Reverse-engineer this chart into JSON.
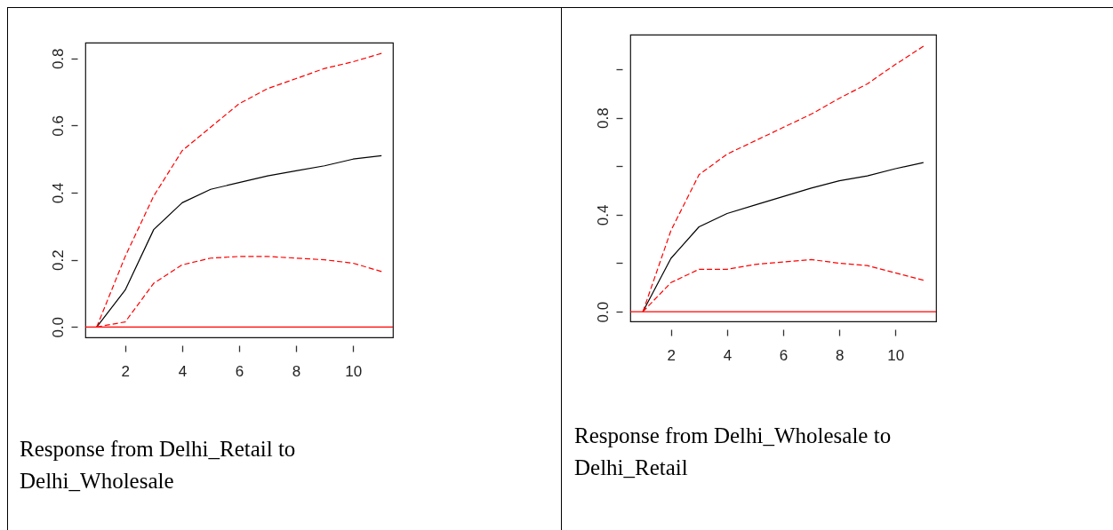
{
  "chart_data": [
    {
      "type": "line",
      "x": [
        1,
        2,
        3,
        4,
        5,
        6,
        7,
        8,
        9,
        10,
        11
      ],
      "xlim": [
        0.6,
        11.4
      ],
      "xticks": [
        2,
        4,
        6,
        8,
        10
      ],
      "ylim": [
        -0.031,
        0.847
      ],
      "yticks": [
        {
          "value": 0.0,
          "label": "0.0"
        },
        {
          "value": 0.2,
          "label": "0.2"
        },
        {
          "value": 0.4,
          "label": "0.4"
        },
        {
          "value": 0.6,
          "label": "0.6"
        },
        {
          "value": 0.8,
          "label": "0.8"
        }
      ],
      "grid": false,
      "series": [
        {
          "color": "#000000",
          "line_style": "solid",
          "values": [
            0,
            0.11,
            0.29,
            0.37,
            0.41,
            0.43,
            0.45,
            0.465,
            0.48,
            0.5,
            0.51
          ]
        },
        {
          "color": "#ff0000",
          "line_style": "dashed",
          "values": [
            0,
            0.21,
            0.39,
            0.525,
            0.595,
            0.665,
            0.71,
            0.74,
            0.77,
            0.79,
            0.815
          ]
        },
        {
          "color": "#ff0000",
          "line_style": "dashed",
          "values": [
            0,
            0.015,
            0.13,
            0.185,
            0.205,
            0.21,
            0.21,
            0.205,
            0.2,
            0.19,
            0.165
          ]
        }
      ],
      "ref_lines": [
        {
          "axis": "y",
          "value": 0,
          "color": "#ff0000"
        }
      ],
      "annotations": [
        "Response from Delhi_Retail to Delhi_Wholesale"
      ]
    },
    {
      "type": "line",
      "x": [
        1,
        2,
        3,
        4,
        5,
        6,
        7,
        8,
        9,
        10,
        11
      ],
      "xlim": [
        0.55,
        11.45
      ],
      "xticks": [
        2,
        4,
        6,
        8,
        10
      ],
      "ylim": [
        -0.04,
        1.143
      ],
      "yticks": [
        {
          "value": 0.0,
          "label": "0.0"
        },
        {
          "value": 0.2,
          "label": null
        },
        {
          "value": 0.4,
          "label": "0.4"
        },
        {
          "value": 0.6,
          "label": null
        },
        {
          "value": 0.8,
          "label": "0.8"
        },
        {
          "value": 1.0,
          "label": null
        }
      ],
      "grid": false,
      "series": [
        {
          "color": "#000000",
          "line_style": "solid",
          "values": [
            0,
            0.22,
            0.35,
            0.405,
            0.44,
            0.475,
            0.51,
            0.54,
            0.56,
            0.59,
            0.615
          ]
        },
        {
          "color": "#ff0000",
          "line_style": "dashed",
          "values": [
            0,
            0.335,
            0.565,
            0.65,
            0.705,
            0.76,
            0.815,
            0.88,
            0.94,
            1.02,
            1.095
          ]
        },
        {
          "color": "#ff0000",
          "line_style": "dashed",
          "values": [
            0,
            0.12,
            0.175,
            0.175,
            0.195,
            0.205,
            0.215,
            0.2,
            0.19,
            0.16,
            0.13
          ]
        }
      ],
      "ref_lines": [
        {
          "axis": "y",
          "value": 0,
          "color": "#ff0000"
        }
      ],
      "annotations": [
        "Response from Delhi_Wholesale to Delhi_Retail"
      ]
    }
  ]
}
